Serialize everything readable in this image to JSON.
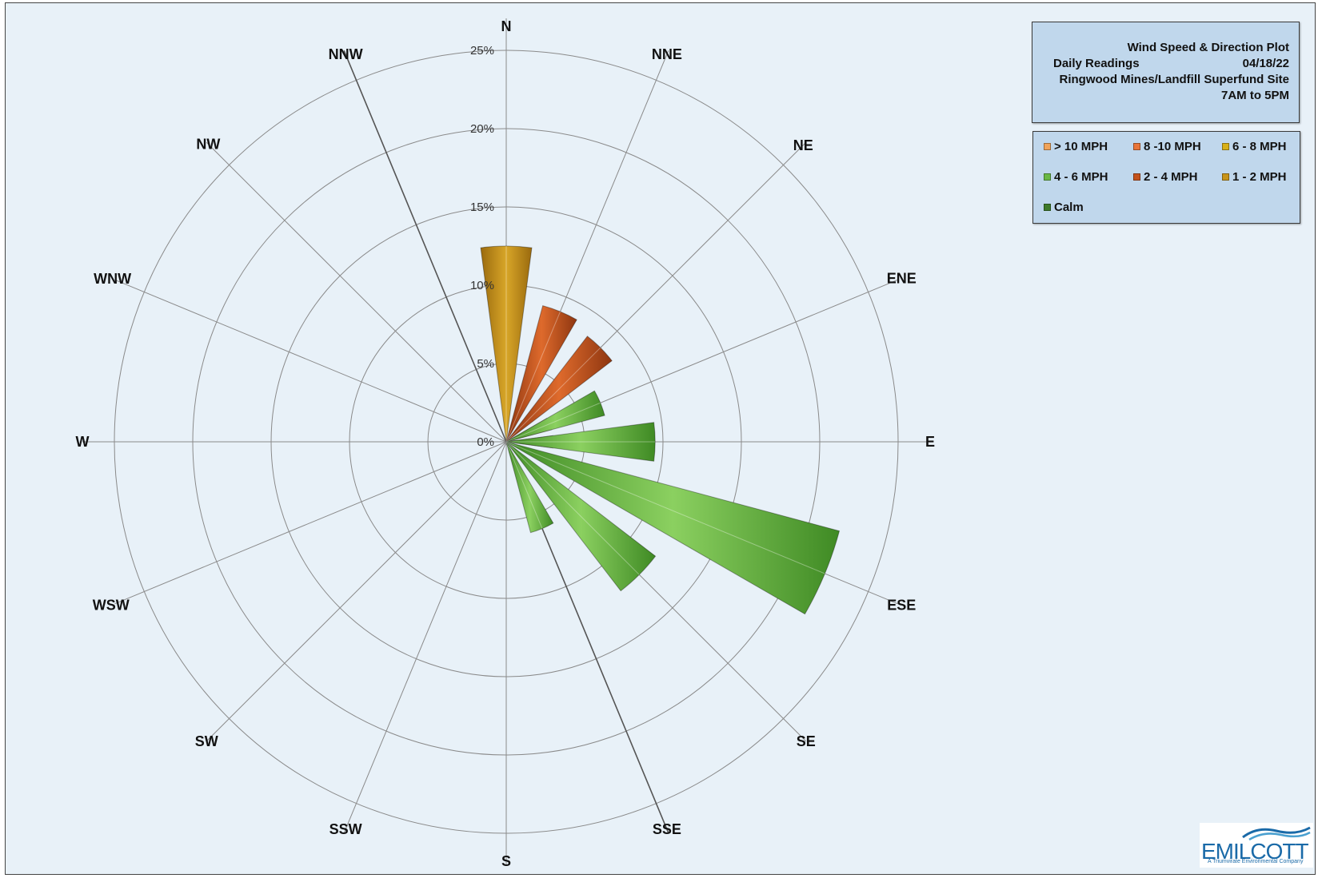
{
  "title_box": {
    "title": "Wind Speed & Direction Plot",
    "subtitle_left": "Daily Readings",
    "date": "04/18/22",
    "site": "Ringwood Mines/Landfill Superfund Site",
    "hours": "7AM to 5PM"
  },
  "legend": [
    {
      "label": "> 10 MPH",
      "color": "#f0a35a"
    },
    {
      "label": "8 -10 MPH",
      "color": "#e8753a"
    },
    {
      "label": "6 - 8 MPH",
      "color": "#d8b018"
    },
    {
      "label": "4 - 6 MPH",
      "color": "#6ab845"
    },
    {
      "label": "2 - 4 MPH",
      "color": "#c4521c"
    },
    {
      "label": "1 - 2 MPH",
      "color": "#c8941a"
    },
    {
      "label": "Calm",
      "color": "#3e7a2a"
    }
  ],
  "logo": {
    "word": "EMILCOTT",
    "tagline": "A Triumvirate Environmental Company"
  },
  "chart_data": {
    "type": "radar",
    "directions": [
      "N",
      "NNE",
      "NE",
      "ENE",
      "E",
      "ESE",
      "SE",
      "SSE",
      "S",
      "SSW",
      "SW",
      "WSW",
      "W",
      "WNW",
      "NW",
      "NNW"
    ],
    "radial_ticks": [
      "0%",
      "5%",
      "10%",
      "15%",
      "20%",
      "25%"
    ],
    "rmax": 25,
    "series": [
      {
        "name": "1 - 2 MPH",
        "color": "#c8941a",
        "values": [
          12.5,
          0,
          0,
          0,
          0,
          0,
          0,
          0,
          0,
          0,
          0,
          0,
          0,
          0,
          0,
          0
        ]
      },
      {
        "name": "2 - 4 MPH",
        "color": "#c4521c",
        "values": [
          0,
          9,
          8.5,
          3,
          3,
          0,
          0,
          0,
          0,
          0,
          0,
          0,
          0,
          0,
          0,
          0
        ]
      },
      {
        "name": "4 - 6 MPH",
        "color": "#6ab845",
        "values": [
          0,
          0,
          0,
          6.5,
          9.5,
          22,
          12,
          6,
          0,
          0,
          0,
          0,
          0,
          0,
          0,
          0
        ]
      }
    ]
  }
}
